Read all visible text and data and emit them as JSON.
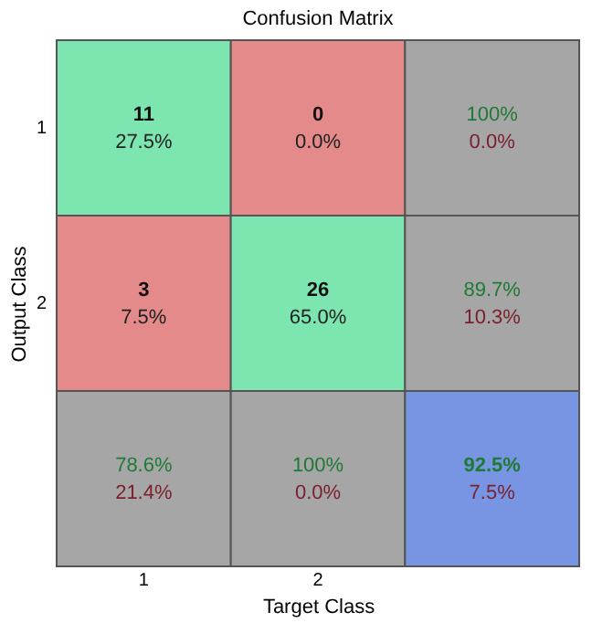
{
  "chart_data": {
    "type": "heatmap",
    "title": "Confusion Matrix",
    "xlabel": "Target Class",
    "ylabel": "Output Class",
    "categories": [
      "1",
      "2",
      null
    ],
    "y_categories": [
      "1",
      "2",
      null
    ],
    "cells": [
      [
        11,
        0,
        100
      ],
      [
        3,
        26,
        89.7
      ],
      [
        78.6,
        100,
        92.5
      ]
    ],
    "cell_labels": [
      [
        "11",
        "0",
        "100%"
      ],
      [
        "3",
        "26",
        "89.7%"
      ],
      [
        "78.6%",
        "100%",
        "92.5%"
      ]
    ],
    "annotations": [
      "27.5%",
      "0.0%",
      "0.0%",
      "7.5%",
      "65.0%",
      "10.3%",
      "21.4%",
      "0.0%",
      "7.5%"
    ],
    "colors": [
      [
        "#7de5b0",
        "#e58a8a",
        "#a6a6a6"
      ],
      [
        "#e58a8a",
        "#7de5b0",
        "#a6a6a6"
      ],
      [
        "#a6a6a6",
        "#a6a6a6",
        "#7895e3"
      ]
    ]
  }
}
